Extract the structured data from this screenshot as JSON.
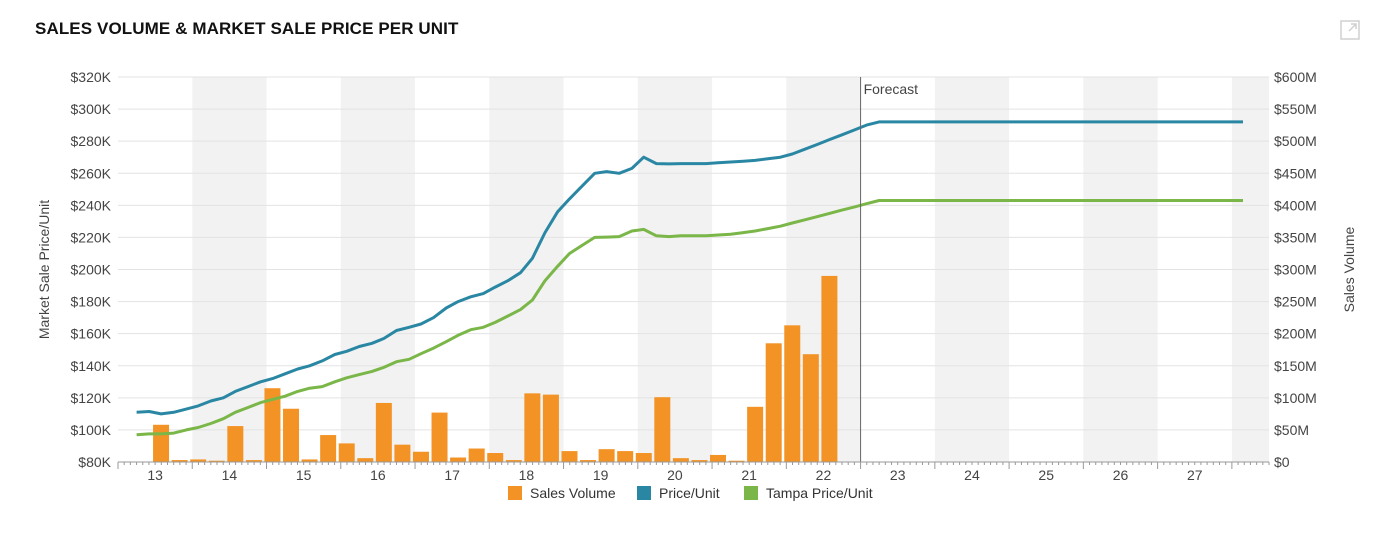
{
  "header": {
    "title": "SALES VOLUME & MARKET SALE PRICE PER UNIT"
  },
  "icons": {
    "expand": "expand-icon"
  },
  "chart_data": {
    "type": "bar+line",
    "title": "SALES VOLUME & MARKET SALE PRICE PER UNIT",
    "x_categories": [
      "13",
      "14",
      "15",
      "16",
      "17",
      "18",
      "19",
      "20",
      "21",
      "22",
      "23",
      "24",
      "25",
      "26",
      "27"
    ],
    "y_left": {
      "label": "Market Sale Price/Unit",
      "range": [
        80000,
        320000
      ],
      "ticks": [
        "$80K",
        "$100K",
        "$120K",
        "$140K",
        "$160K",
        "$180K",
        "$200K",
        "$220K",
        "$240K",
        "$260K",
        "$280K",
        "$300K",
        "$320K"
      ]
    },
    "y_right": {
      "label": "Sales Volume",
      "range": [
        0,
        600000000
      ],
      "ticks": [
        "$0",
        "$50M",
        "$100M",
        "$150M",
        "$200M",
        "$250M",
        "$300M",
        "$350M",
        "$400M",
        "$450M",
        "$500M",
        "$550M",
        "$600M"
      ]
    },
    "forecast_label": "Forecast",
    "forecast_start_x": 2023.0,
    "bars": {
      "name": "Sales Volume",
      "color": "#f39325",
      "x": [
        2013.33,
        2013.58,
        2013.83,
        2014.08,
        2014.33,
        2014.58,
        2014.83,
        2015.08,
        2015.33,
        2015.58,
        2015.83,
        2016.08,
        2016.33,
        2016.58,
        2016.83,
        2017.08,
        2017.33,
        2017.58,
        2017.83,
        2018.08,
        2018.33,
        2018.58,
        2018.83,
        2019.08,
        2019.33,
        2019.58,
        2019.83,
        2020.08,
        2020.33,
        2020.58,
        2020.83,
        2021.08,
        2021.33,
        2021.58,
        2021.83,
        2022.08,
        2022.33
      ],
      "values": [
        58000000,
        3000000,
        4000000,
        2000000,
        56000000,
        3000000,
        115000000,
        83000000,
        4000000,
        42000000,
        29000000,
        6000000,
        92000000,
        27000000,
        16000000,
        77000000,
        7000000,
        21000000,
        14000000,
        3000000,
        107000000,
        105000000,
        17000000,
        3000000,
        20000000,
        17000000,
        14000000,
        101000000,
        6000000,
        3000000,
        11000000,
        2000000,
        86000000,
        185000000,
        213000000,
        168000000,
        290000000
      ]
    },
    "series": [
      {
        "name": "Price/Unit",
        "color": "#2a87a4",
        "x": [
          2013,
          2013.17,
          2013.33,
          2013.5,
          2013.67,
          2013.83,
          2014,
          2014.17,
          2014.33,
          2014.5,
          2014.67,
          2014.83,
          2015,
          2015.17,
          2015.33,
          2015.5,
          2015.67,
          2015.83,
          2016,
          2016.17,
          2016.33,
          2016.5,
          2016.67,
          2016.83,
          2017,
          2017.17,
          2017.33,
          2017.5,
          2017.67,
          2017.83,
          2018,
          2018.17,
          2018.33,
          2018.5,
          2018.67,
          2018.83,
          2019,
          2019.17,
          2019.33,
          2019.5,
          2019.67,
          2019.83,
          2020,
          2020.17,
          2020.33,
          2020.5,
          2020.67,
          2020.83,
          2021,
          2021.17,
          2021.33,
          2021.5,
          2021.67,
          2021.83,
          2022,
          2022.17,
          2022.33,
          2022.5,
          2022.67,
          2022.83,
          2023,
          2023.17,
          2023.33,
          2023.5,
          2023.67,
          2023.83,
          2024,
          2024.25,
          2024.5,
          2024.75,
          2025,
          2025.25,
          2025.5,
          2025.75,
          2026,
          2026.25,
          2026.5,
          2026.75,
          2027,
          2027.25,
          2027.5,
          2027.75,
          2027.9
        ],
        "values": [
          111000,
          111500,
          110000,
          111000,
          113000,
          115000,
          118000,
          120000,
          124000,
          127000,
          130000,
          132000,
          135000,
          138000,
          140000,
          143000,
          147000,
          149000,
          152000,
          154000,
          157000,
          162000,
          164000,
          166000,
          170000,
          176000,
          180000,
          183000,
          185000,
          189000,
          193000,
          198000,
          207000,
          223000,
          236000,
          244000,
          252000,
          260000,
          261000,
          260000,
          263000,
          270000,
          266000,
          265800,
          266000,
          266000,
          266000,
          266500,
          267000,
          267500,
          268000,
          269000,
          270000,
          272000,
          275000,
          278000,
          281000,
          284000,
          287000,
          290000,
          292000,
          292000,
          292000,
          292000,
          292000,
          292000,
          292000,
          292000,
          292000,
          292000,
          292000,
          292000,
          292000,
          292000,
          292000,
          292000,
          292000,
          292000,
          292000,
          292000,
          292000,
          292000,
          292000
        ]
      },
      {
        "name": "Tampa Price/Unit",
        "color": "#7ab648",
        "x": [
          2013,
          2013.17,
          2013.33,
          2013.5,
          2013.67,
          2013.83,
          2014,
          2014.17,
          2014.33,
          2014.5,
          2014.67,
          2014.83,
          2015,
          2015.17,
          2015.33,
          2015.5,
          2015.67,
          2015.83,
          2016,
          2016.17,
          2016.33,
          2016.5,
          2016.67,
          2016.83,
          2017,
          2017.17,
          2017.33,
          2017.5,
          2017.67,
          2017.83,
          2018,
          2018.17,
          2018.33,
          2018.5,
          2018.67,
          2018.83,
          2019,
          2019.17,
          2019.33,
          2019.5,
          2019.67,
          2019.83,
          2020,
          2020.17,
          2020.33,
          2020.5,
          2020.67,
          2020.83,
          2021,
          2021.17,
          2021.33,
          2021.5,
          2021.67,
          2021.83,
          2022,
          2022.17,
          2022.33,
          2022.5,
          2022.67,
          2022.83,
          2023,
          2023.17,
          2023.33,
          2023.5,
          2023.67,
          2023.83,
          2024,
          2024.25,
          2024.5,
          2024.75,
          2025,
          2025.25,
          2025.5,
          2025.75,
          2026,
          2026.25,
          2026.5,
          2026.75,
          2027,
          2027.25,
          2027.5,
          2027.75,
          2027.9
        ],
        "values": [
          97000,
          97500,
          97500,
          98000,
          100000,
          101500,
          104000,
          107000,
          111000,
          114000,
          117000,
          119000,
          121000,
          124000,
          126000,
          127000,
          130000,
          132500,
          134500,
          136500,
          139000,
          142500,
          144000,
          147500,
          151000,
          155000,
          159000,
          162500,
          164000,
          167000,
          171000,
          175000,
          181000,
          193000,
          202000,
          210000,
          215000,
          220000,
          220200,
          220500,
          224000,
          225000,
          221000,
          220500,
          221000,
          221000,
          221000,
          221500,
          222000,
          223000,
          224000,
          225500,
          227000,
          229000,
          231000,
          233000,
          235000,
          237000,
          239000,
          241000,
          243000,
          243000,
          243000,
          243000,
          243000,
          243000,
          243000,
          243000,
          243000,
          243000,
          243000,
          243000,
          243000,
          243000,
          243000,
          243000,
          243000,
          243000,
          243000,
          243000,
          243000,
          243000,
          243000
        ]
      }
    ],
    "legend": [
      {
        "label": "Sales Volume",
        "color": "#f39325"
      },
      {
        "label": "Price/Unit",
        "color": "#2a87a4"
      },
      {
        "label": "Tampa Price/Unit",
        "color": "#7ab648"
      }
    ]
  }
}
